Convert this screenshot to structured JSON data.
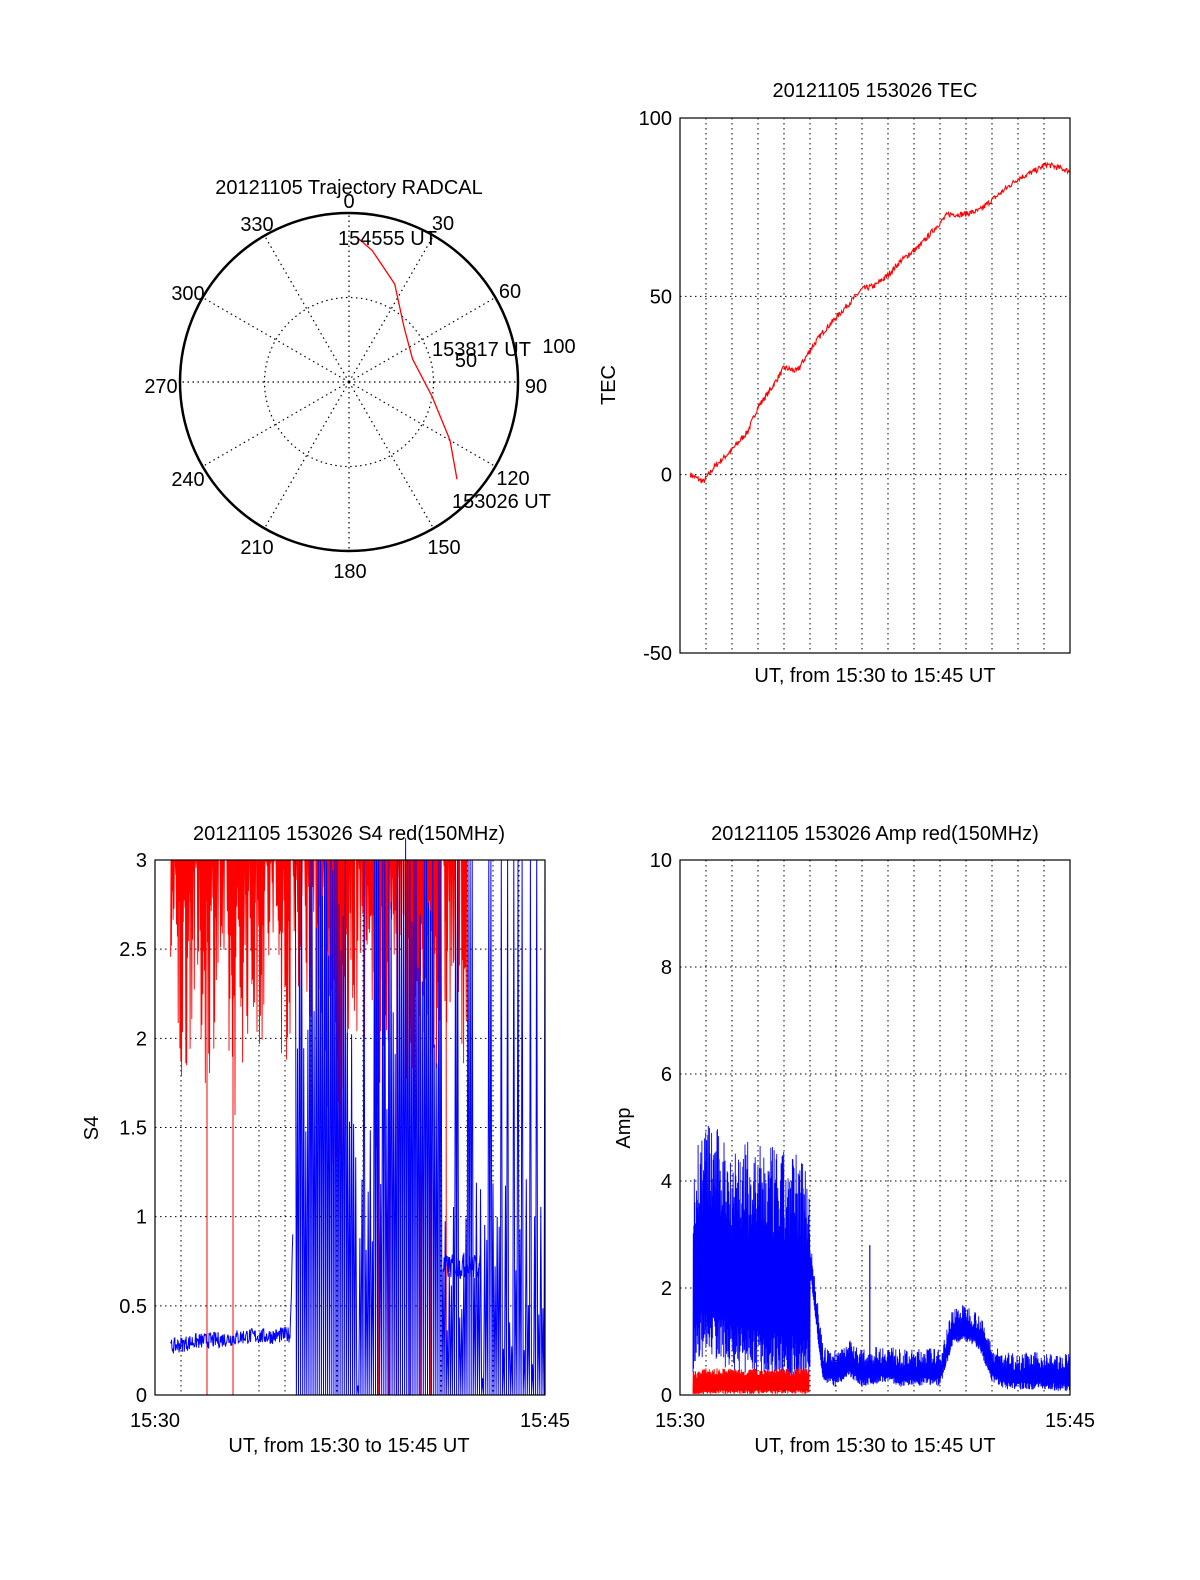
{
  "colors": {
    "red_series": "#ff0000",
    "blue_series": "#0000ff",
    "axis": "#000000",
    "grid": "#000000",
    "background": "#ffffff"
  },
  "chart_data": [
    {
      "type": "polar",
      "title": "20121105 Trajectory RADCAL",
      "azimuth_labels": [
        "0",
        "30",
        "60",
        "90",
        "120",
        "150",
        "180",
        "210",
        "240",
        "270",
        "300",
        "330"
      ],
      "radial_labels": [
        "50",
        "100"
      ],
      "radial_max": 100,
      "grid": true,
      "annotations": [
        {
          "text": "154555 UT",
          "azimuth": 3,
          "zenith": 86
        },
        {
          "text": "153817 UT",
          "azimuth": 70,
          "zenith": 40
        },
        {
          "text": "153026 UT",
          "azimuth": 132,
          "zenith": 86
        }
      ],
      "series": [
        {
          "color": "#ff0000",
          "points": [
            {
              "azimuth": 132,
              "zenith": 86
            },
            {
              "azimuth": 120,
              "zenith": 69
            },
            {
              "azimuth": 100,
              "zenith": 50
            },
            {
              "azimuth": 70,
              "zenith": 40
            },
            {
              "azimuth": 45,
              "zenith": 46
            },
            {
              "azimuth": 25,
              "zenith": 64
            },
            {
              "azimuth": 10,
              "zenith": 79
            },
            {
              "azimuth": 3,
              "zenith": 86
            }
          ]
        }
      ]
    },
    {
      "type": "line",
      "title": "20121105 153026 TEC",
      "xlabel": "UT, from 15:30 to 15:45 UT",
      "ylabel": "TEC",
      "xlim": [
        0,
        15
      ],
      "ylim": [
        -50,
        100
      ],
      "yticks": [
        "-50",
        "0",
        "50",
        "100"
      ],
      "xticks": [],
      "grid": true,
      "series": [
        {
          "color": "#ff0000",
          "x": [
            0.4,
            0.9,
            1.3,
            2.0,
            2.6,
            3.0,
            3.5,
            4.0,
            4.5,
            5.1,
            5.5,
            6.0,
            6.5,
            7.0,
            7.5,
            8.0,
            8.5,
            9.2,
            9.8,
            10.3,
            10.9,
            11.5,
            12.0,
            12.5,
            13.0,
            13.6,
            14.1,
            14.6,
            15.0
          ],
          "y": [
            0,
            -2,
            2,
            7,
            12,
            19,
            24,
            30,
            29,
            36,
            40,
            44,
            48,
            52,
            53,
            56,
            60,
            64,
            69,
            73,
            73,
            74,
            77,
            80,
            83,
            85,
            87,
            86,
            85
          ]
        }
      ]
    },
    {
      "type": "line",
      "title": "20121105 153026 S4 red(150MHz)",
      "xlabel": "UT, from 15:30 to 15:45 UT",
      "ylabel": "S4",
      "xlim": [
        0,
        15
      ],
      "ylim": [
        0,
        3
      ],
      "yticks": [
        "0",
        "0.5",
        "1",
        "1.5",
        "2",
        "2.5",
        "3"
      ],
      "xticks": [
        "15:30",
        "15:45"
      ],
      "grid": true,
      "series": [
        {
          "color": "#0000ff",
          "x": [
            0.6,
            1.5,
            2.5,
            3.5,
            4.5,
            5.2,
            5.4,
            6.5,
            7.0,
            7.5,
            7.8,
            8.5,
            9.5,
            10.5,
            11.2,
            11.8,
            12.2,
            12.6
          ],
          "y": [
            0.27,
            0.3,
            0.31,
            0.33,
            0.33,
            0.34,
            1.5,
            2.5,
            2.9,
            2.0,
            0.5,
            1.6,
            2.6,
            2.5,
            0.7,
            0.75,
            0.72,
            0.68
          ]
        },
        {
          "color": "#ff0000",
          "x": [
            0.6,
            1.0,
            1.5,
            2.0,
            2.5,
            3.0,
            3.5,
            4.0,
            4.5,
            5.0,
            5.5,
            6.0,
            6.5,
            7.0,
            7.5,
            8.0,
            8.5,
            9.0,
            9.5,
            10.0,
            10.5,
            11.0,
            11.5,
            12.0
          ],
          "y": [
            2.6,
            2.1,
            2.6,
            2.2,
            2.7,
            2.0,
            2.5,
            2.4,
            2.7,
            2.3,
            2.8,
            2.6,
            2.4,
            1.4,
            2.4,
            2.6,
            1.8,
            2.5,
            2.7,
            1.6,
            2.2,
            2.4,
            2.6,
            2.3
          ]
        }
      ]
    },
    {
      "type": "line",
      "title": "20121105 153026 Amp red(150MHz)",
      "xlabel": "UT, from 15:30 to 15:45 UT",
      "ylabel": "Amp",
      "xlim": [
        0,
        15
      ],
      "ylim": [
        0,
        10
      ],
      "yticks": [
        "0",
        "2",
        "4",
        "6",
        "8",
        "10"
      ],
      "xticks": [
        "15:30",
        "15:45"
      ],
      "grid": true,
      "series": [
        {
          "color": "#0000ff",
          "x": [
            0.5,
            1.0,
            1.5,
            2.0,
            2.5,
            3.0,
            3.5,
            4.0,
            4.5,
            5.0,
            5.5,
            6.0,
            6.5,
            7.0,
            7.5,
            8.0,
            8.5,
            9.0,
            9.5,
            10.0,
            10.5,
            11.0,
            11.5,
            12.0,
            12.5,
            13.0,
            13.5,
            14.0,
            14.5,
            15.0
          ],
          "y": [
            2.9,
            3.3,
            3.1,
            2.9,
            2.9,
            2.8,
            2.8,
            2.7,
            2.7,
            2.6,
            0.55,
            0.5,
            0.7,
            0.5,
            0.55,
            0.6,
            0.5,
            0.5,
            0.55,
            0.5,
            1.3,
            1.35,
            1.2,
            0.6,
            0.45,
            0.45,
            0.45,
            0.45,
            0.42,
            0.42
          ]
        },
        {
          "color": "#ff0000",
          "x": [
            0.5,
            1.0,
            1.5,
            2.0,
            2.5,
            3.0,
            3.5,
            4.0,
            4.5,
            5.0
          ],
          "y": [
            0.3,
            0.35,
            0.35,
            0.35,
            0.35,
            0.35,
            0.35,
            0.35,
            0.35,
            0.35
          ]
        }
      ]
    }
  ]
}
